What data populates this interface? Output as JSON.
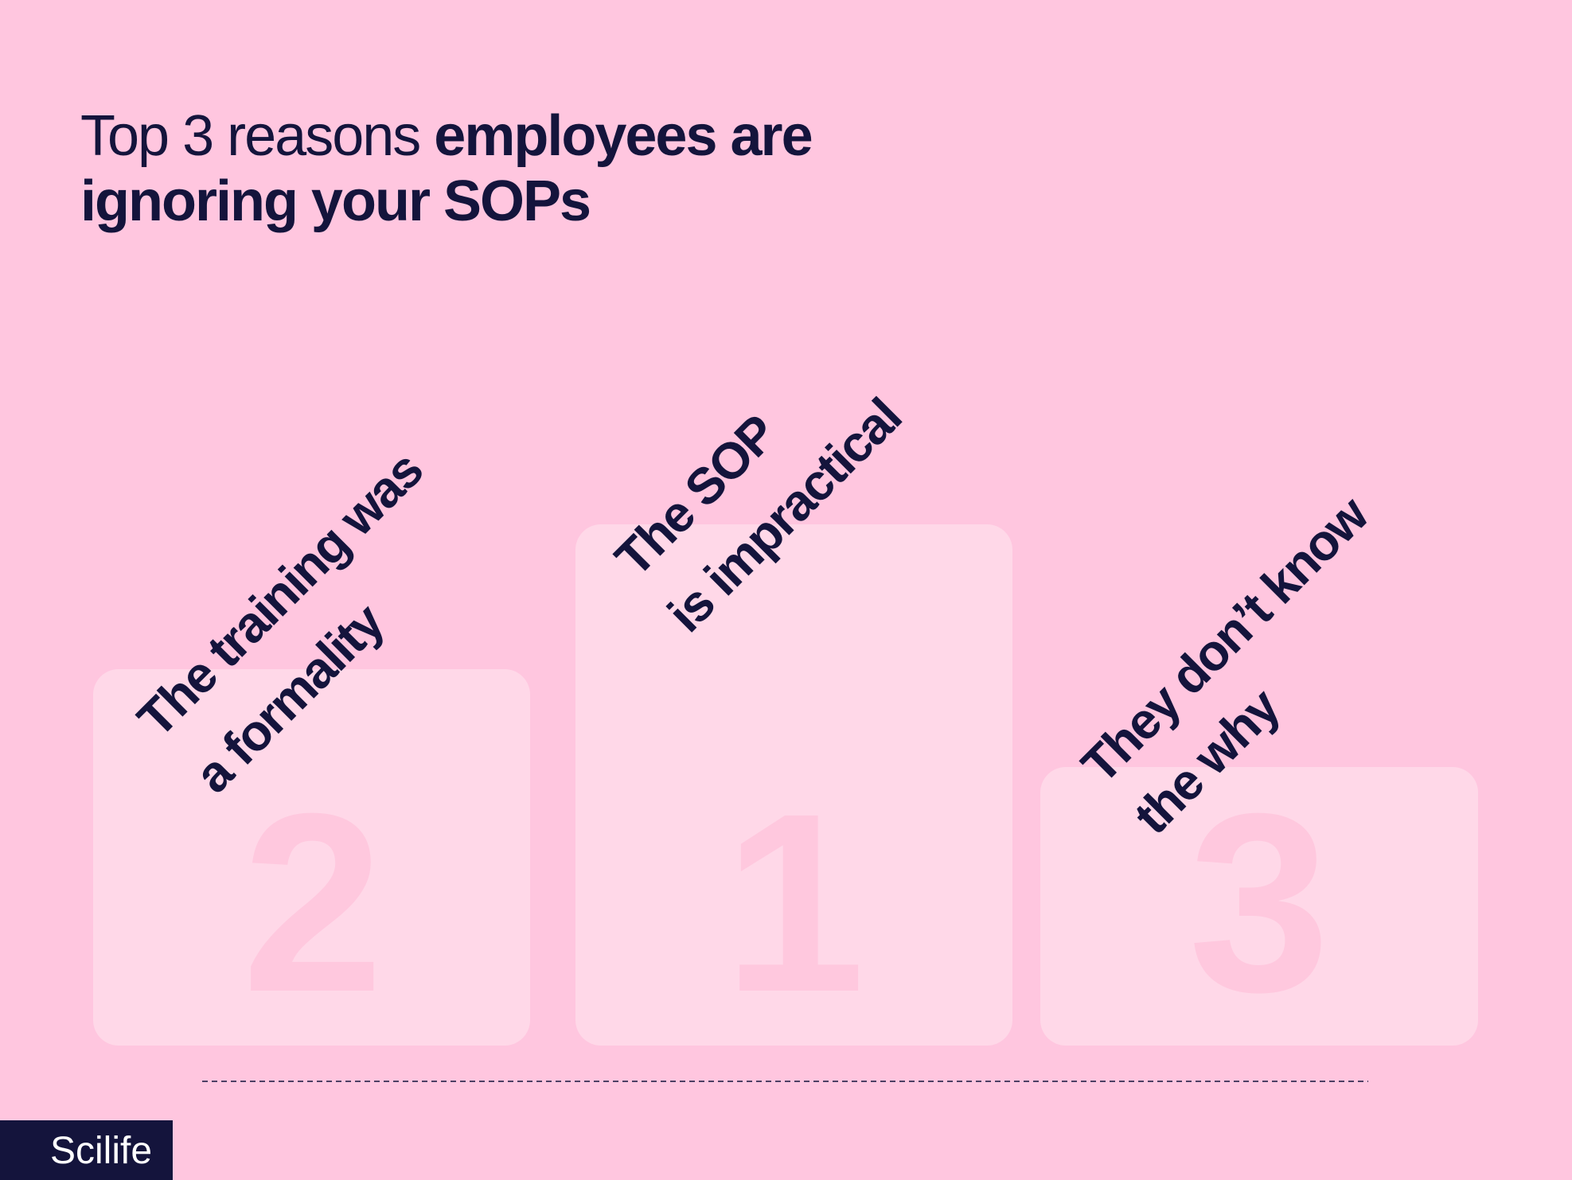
{
  "title": {
    "line1_regular": "Top 3 reasons ",
    "line1_bold": "employees are",
    "line2": "ignoring your SOPs"
  },
  "podium": [
    {
      "rank": "2",
      "lines": [
        "The training was",
        "a formality"
      ]
    },
    {
      "rank": "1",
      "lines": [
        "The SOP",
        "is impractical"
      ]
    },
    {
      "rank": "3",
      "lines": [
        "They don’t know",
        "the why"
      ]
    }
  ],
  "brand": "Scilife"
}
